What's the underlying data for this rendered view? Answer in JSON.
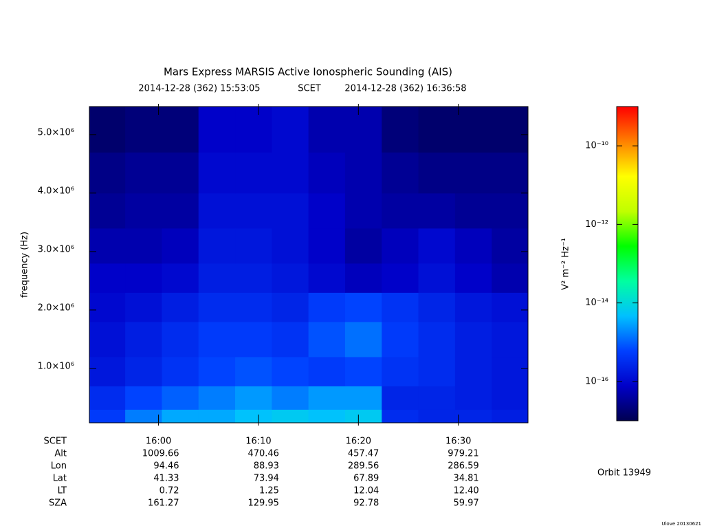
{
  "chart_data": {
    "type": "heatmap",
    "title": "Mars Express MARSIS Active Ionospheric Sounding (AIS)",
    "start_time": "2014-12-28 (362) 15:53:05",
    "time_system": "SCET",
    "end_time": "2014-12-28 (362) 16:36:58",
    "y_label": "frequency (Hz)",
    "xlim": [
      57185,
      59818
    ],
    "xticks": [
      {
        "value": 57600,
        "label": "16:00"
      },
      {
        "value": 58200,
        "label": "16:10"
      },
      {
        "value": 58800,
        "label": "16:20"
      },
      {
        "value": 59400,
        "label": "16:30"
      }
    ],
    "ylim": [
      70000,
      5480000
    ],
    "yticks": [
      {
        "value": 1000000,
        "label": "1.0×10⁶"
      },
      {
        "value": 2000000,
        "label": "2.0×10⁶"
      },
      {
        "value": 3000000,
        "label": "3.0×10⁶"
      },
      {
        "value": 4000000,
        "label": "4.0×10⁶"
      },
      {
        "value": 5000000,
        "label": "5.0×10⁶"
      }
    ],
    "xbins": [
      57185,
      57400,
      57620,
      57840,
      58060,
      58280,
      58500,
      58720,
      58940,
      59160,
      59380,
      59600,
      59818
    ],
    "ybins": [
      70000,
      300000,
      700000,
      1200000,
      1800000,
      2300000,
      2800000,
      3400000,
      4000000,
      4700000,
      5480000
    ],
    "values": [
      [
        5e-16,
        1.6e-15,
        3.2e-15,
        3.2e-15,
        5e-15,
        6.3e-15,
        5e-15,
        6.3e-15,
        3.2e-16,
        2.5e-16,
        2.5e-16,
        2e-16
      ],
      [
        3.2e-16,
        6.3e-16,
        1e-15,
        1.6e-15,
        2.5e-15,
        1.6e-15,
        2.5e-15,
        2.5e-15,
        2.5e-16,
        2.5e-16,
        2e-16,
        1.6e-16
      ],
      [
        1.6e-16,
        2.5e-16,
        4e-16,
        6.3e-16,
        8e-16,
        6.3e-16,
        5e-16,
        6.3e-16,
        4e-16,
        3.2e-16,
        2e-16,
        1.6e-16
      ],
      [
        1.3e-16,
        2e-16,
        3.2e-16,
        5e-16,
        5e-16,
        4e-16,
        8e-16,
        1.3e-15,
        5e-16,
        3.2e-16,
        2e-16,
        1.6e-16
      ],
      [
        1e-16,
        1.3e-16,
        2e-16,
        3.2e-16,
        3.2e-16,
        2.5e-16,
        5e-16,
        6.3e-16,
        4e-16,
        2.5e-16,
        1.6e-16,
        1.3e-16
      ],
      [
        8e-17,
        8e-17,
        1e-16,
        2e-16,
        2e-16,
        1.6e-16,
        1e-16,
        6.3e-17,
        8e-17,
        1.3e-16,
        8e-17,
        5e-17
      ],
      [
        5e-17,
        5e-17,
        6.3e-17,
        1.6e-16,
        1.6e-16,
        1.3e-16,
        8e-17,
        4e-17,
        6.3e-17,
        1e-16,
        6.3e-17,
        4e-17
      ],
      [
        3.2e-17,
        4e-17,
        4e-17,
        1.3e-16,
        1.3e-16,
        1.3e-16,
        8e-17,
        5e-17,
        4e-17,
        4e-17,
        3.2e-17,
        3.2e-17
      ],
      [
        2.5e-17,
        3.2e-17,
        3.2e-17,
        1e-16,
        1e-16,
        1e-16,
        6.3e-17,
        5e-17,
        3.2e-17,
        2.5e-17,
        2.5e-17,
        2.5e-17
      ],
      [
        1.6e-17,
        2e-17,
        2e-17,
        8e-17,
        8e-17,
        1e-16,
        5e-17,
        5e-17,
        2e-17,
        1.6e-17,
        1.6e-17,
        1.6e-17
      ]
    ],
    "zscale": "log",
    "zlim": [
      1e-17,
      1e-09
    ],
    "zticks": [
      {
        "value": 1e-10,
        "label": "10⁻¹⁰"
      },
      {
        "value": 1e-12,
        "label": "10⁻¹²"
      },
      {
        "value": 1e-14,
        "label": "10⁻¹⁴"
      },
      {
        "value": 1e-16,
        "label": "10⁻¹⁶"
      }
    ],
    "z_label": "V² m⁻² Hz⁻¹",
    "colorscale": [
      "#000050",
      "#0000c8",
      "#0040ff",
      "#00c0ff",
      "#00ffa0",
      "#00ff00",
      "#c0ff00",
      "#ffff00",
      "#ff8000",
      "#ff0000"
    ],
    "x_label": "SCET",
    "ephemeris": [
      {
        "name": "Alt",
        "values": [
          "1009.66",
          "470.46",
          "457.47",
          "979.21"
        ]
      },
      {
        "name": "Lon",
        "values": [
          "94.46",
          "88.93",
          "289.56",
          "286.59"
        ]
      },
      {
        "name": "Lat",
        "values": [
          "41.33",
          "73.94",
          "67.89",
          "34.81"
        ]
      },
      {
        "name": "LT",
        "values": [
          "0.72",
          "1.25",
          "12.04",
          "12.40"
        ]
      },
      {
        "name": "SZA",
        "values": [
          "161.27",
          "129.95",
          "92.78",
          "59.97"
        ]
      }
    ],
    "orbit": "Orbit 13949",
    "footer": "Ulove 20130621"
  }
}
